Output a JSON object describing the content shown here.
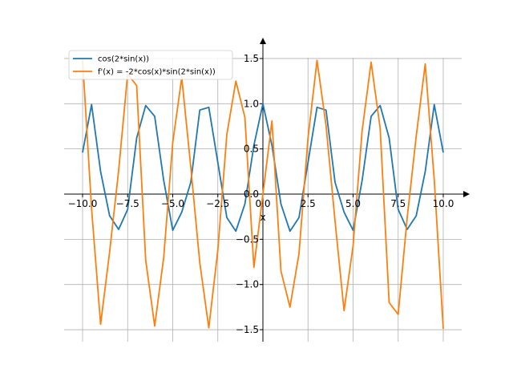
{
  "chart_data": {
    "type": "line",
    "xlabel": "x",
    "xlim": [
      -10,
      10
    ],
    "ylim": [
      -1.5,
      1.5
    ],
    "grid": true,
    "axes_style": "centered-at-origin-with-arrows",
    "legend_position": "top-left",
    "x_ticks": [
      {
        "value": -10,
        "label": "−10.0"
      },
      {
        "value": -7.5,
        "label": "−7.5"
      },
      {
        "value": -5,
        "label": "−5.0"
      },
      {
        "value": -2.5,
        "label": "−2.5"
      },
      {
        "value": 0,
        "label": "0.0"
      },
      {
        "value": 2.5,
        "label": "2.5"
      },
      {
        "value": 5,
        "label": "5.0"
      },
      {
        "value": 7.5,
        "label": "7.5"
      },
      {
        "value": 10,
        "label": "10.0"
      }
    ],
    "y_ticks": [
      {
        "value": -1.5,
        "label": "−1.5"
      },
      {
        "value": -1.0,
        "label": "−1.0"
      },
      {
        "value": -0.5,
        "label": "−0.5"
      },
      {
        "value": 0,
        "label": "0.0"
      },
      {
        "value": 0.5,
        "label": "0.5"
      },
      {
        "value": 1.0,
        "label": "1.0"
      },
      {
        "value": 1.5,
        "label": "1.5"
      }
    ],
    "series": [
      {
        "name": "cos(2*sin(x))",
        "color": "#1f77b4",
        "x": [
          -10,
          -9.5,
          -9,
          -8.5,
          -8,
          -7.5,
          -7,
          -6.5,
          -6,
          -5.5,
          -5,
          -4.5,
          -4,
          -3.5,
          -3,
          -2.5,
          -2,
          -1.5,
          -1,
          -0.5,
          0,
          0.5,
          1,
          1.5,
          2,
          2.5,
          3,
          3.5,
          4,
          4.5,
          5,
          5.5,
          6,
          6.5,
          7,
          7.5,
          8,
          8.5,
          9,
          9.5,
          10
        ],
        "y": [
          0.46,
          0.99,
          0.25,
          -0.24,
          -0.39,
          -0.17,
          0.62,
          0.98,
          0.86,
          0.15,
          -0.4,
          -0.2,
          0.13,
          0.93,
          0.96,
          0.35,
          -0.26,
          -0.41,
          -0.11,
          0.54,
          1.0,
          0.54,
          -0.11,
          -0.41,
          -0.26,
          0.35,
          0.96,
          0.93,
          0.13,
          -0.2,
          -0.4,
          0.15,
          0.86,
          0.98,
          0.62,
          -0.17,
          -0.39,
          -0.24,
          0.25,
          0.99,
          0.46
        ]
      },
      {
        "name": "f'(x) = -2*cos(x)*sin(2*sin(x))",
        "color": "#ff7f0e",
        "x": [
          -10,
          -9.5,
          -9,
          -8.5,
          -8,
          -7.5,
          -7,
          -6.5,
          -6,
          -5.5,
          -5,
          -4.5,
          -4,
          -3.5,
          -3,
          -2.5,
          -2,
          -1.5,
          -1,
          -0.5,
          0,
          0.5,
          1,
          1.5,
          2,
          2.5,
          3,
          3.5,
          4,
          4.5,
          5,
          5.5,
          6,
          6.5,
          7,
          7.5,
          8,
          8.5,
          9,
          9.5,
          10
        ],
        "y": [
          1.49,
          -0.16,
          -1.44,
          -0.64,
          0.26,
          1.33,
          1.2,
          -0.73,
          -1.46,
          -0.7,
          0.57,
          1.29,
          0.3,
          -0.76,
          -1.48,
          -0.62,
          0.66,
          1.25,
          0.85,
          -0.81,
          0,
          0.81,
          -0.85,
          -1.25,
          -0.66,
          0.62,
          1.48,
          0.76,
          -0.3,
          -1.29,
          -0.57,
          0.7,
          1.46,
          0.73,
          -1.2,
          -1.33,
          -0.26,
          0.64,
          1.44,
          0.16,
          -1.49
        ]
      }
    ]
  }
}
